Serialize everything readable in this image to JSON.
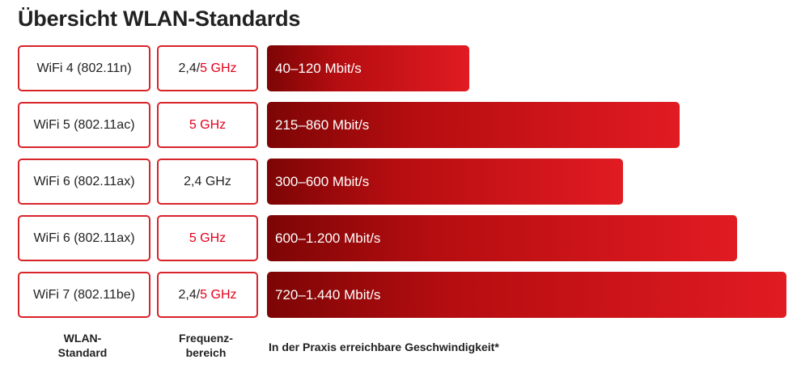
{
  "title": "Übersicht WLAN-Standards",
  "footer": {
    "standard": "WLAN-\nStandard",
    "frequency": "Frequenz-\nbereich",
    "speed": "In der Praxis erreichbare Geschwindigkeit*"
  },
  "colors": {
    "accent": "#e3001b",
    "bar_dark": "#7d0505",
    "bar_light": "#e11b22"
  },
  "chart_data": {
    "type": "bar",
    "orientation": "horizontal",
    "title": "Übersicht WLAN-Standards",
    "categories": [
      "WiFi 4 (802.11n)",
      "WiFi 5 (802.11ac)",
      "WiFi 6 (802.11ax)",
      "WiFi 6 (802.11ax)",
      "WiFi 7 (802.11be)"
    ],
    "frequency": [
      [
        {
          "text": "2,4/",
          "red": false
        },
        {
          "text": "5 GHz",
          "red": true
        }
      ],
      [
        {
          "text": "5 GHz",
          "red": true
        }
      ],
      [
        {
          "text": "2,4 GHz",
          "red": false
        }
      ],
      [
        {
          "text": "5 GHz",
          "red": true
        }
      ],
      [
        {
          "text": "2,4/",
          "red": false
        },
        {
          "text": "5 GHz",
          "red": true
        }
      ]
    ],
    "ranges": [
      [
        40,
        120
      ],
      [
        215,
        860
      ],
      [
        300,
        600
      ],
      [
        600,
        1200
      ],
      [
        720,
        1440
      ]
    ],
    "labels": [
      "40–120 Mbit/s",
      "215–860 Mbit/s",
      "300–600 Mbit/s",
      "600–1.200 Mbit/s",
      "720–1.440 Mbit/s"
    ],
    "bar_lengths_relative": [
      0.39,
      0.795,
      0.685,
      0.905,
      1.0
    ],
    "xlabel": "In der Praxis erreichbare Geschwindigkeit*"
  }
}
